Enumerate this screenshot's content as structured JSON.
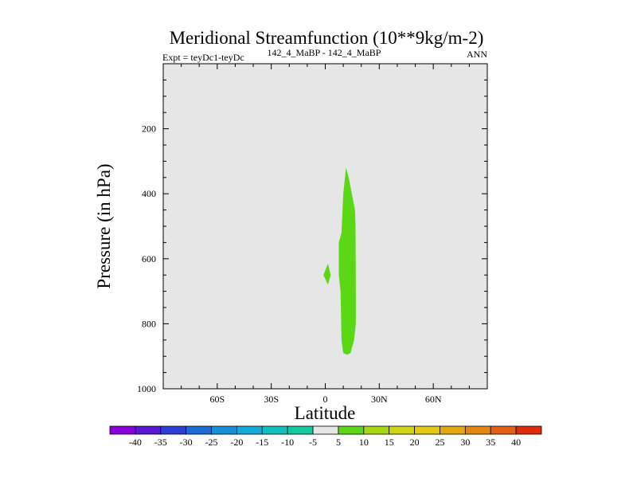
{
  "chart_data": {
    "type": "contour",
    "title": "Meridional Streamfunction (10**9kg/m-2)",
    "subtitle_left": "Expt = teyDc1-teyDc",
    "subtitle_center": "142_4_MaBP - 142_4_MaBP",
    "subtitle_right": "ANN",
    "xlabel": "Latitude",
    "ylabel": "Pressure (in hPa)",
    "xlim": [
      -90,
      90
    ],
    "ylim": [
      1000,
      0
    ],
    "x_ticks": [
      {
        "value": -60,
        "label": "60S"
      },
      {
        "value": -30,
        "label": "30S"
      },
      {
        "value": 0,
        "label": "0"
      },
      {
        "value": 30,
        "label": "30N"
      },
      {
        "value": 60,
        "label": "60N"
      }
    ],
    "y_ticks": [
      {
        "value": 200,
        "label": "200"
      },
      {
        "value": 400,
        "label": "400"
      },
      {
        "value": 600,
        "label": "600"
      },
      {
        "value": 800,
        "label": "800"
      },
      {
        "value": 1000,
        "label": "1000"
      }
    ],
    "background_color": "#e6e6e6",
    "colorbar": {
      "labels": [
        "-40",
        "-35",
        "-30",
        "-25",
        "-20",
        "-15",
        "-10",
        "-5",
        "5",
        "10",
        "15",
        "20",
        "25",
        "30",
        "35",
        "40"
      ],
      "colors": [
        "#8a00d8",
        "#5a16d2",
        "#2b3ed6",
        "#1c6bd6",
        "#148fd8",
        "#14abd8",
        "#12c0c0",
        "#14c8a0",
        "#e6e6e6",
        "#5ad816",
        "#a6d814",
        "#cfd414",
        "#e4c812",
        "#e4a812",
        "#e48612",
        "#e46012",
        "#e02a0c"
      ]
    },
    "regions": [
      {
        "name": "main-positive-cell",
        "level": "5 to 10",
        "color": "#5ad816",
        "points": [
          [
            11.5,
            320
          ],
          [
            13,
            350
          ],
          [
            16.5,
            450
          ],
          [
            16.8,
            500
          ],
          [
            17,
            700
          ],
          [
            17,
            800
          ],
          [
            16,
            850
          ],
          [
            14,
            890
          ],
          [
            12,
            895
          ],
          [
            10,
            890
          ],
          [
            9,
            850
          ],
          [
            8.5,
            700
          ],
          [
            7.5,
            650
          ],
          [
            7.5,
            550
          ],
          [
            9,
            520
          ],
          [
            10,
            400
          ]
        ]
      },
      {
        "name": "small-positive-cell",
        "level": "5 to 10",
        "color": "#5ad816",
        "points": [
          [
            1.5,
            615
          ],
          [
            3,
            650
          ],
          [
            1.5,
            680
          ],
          [
            -1,
            650
          ]
        ]
      }
    ]
  }
}
